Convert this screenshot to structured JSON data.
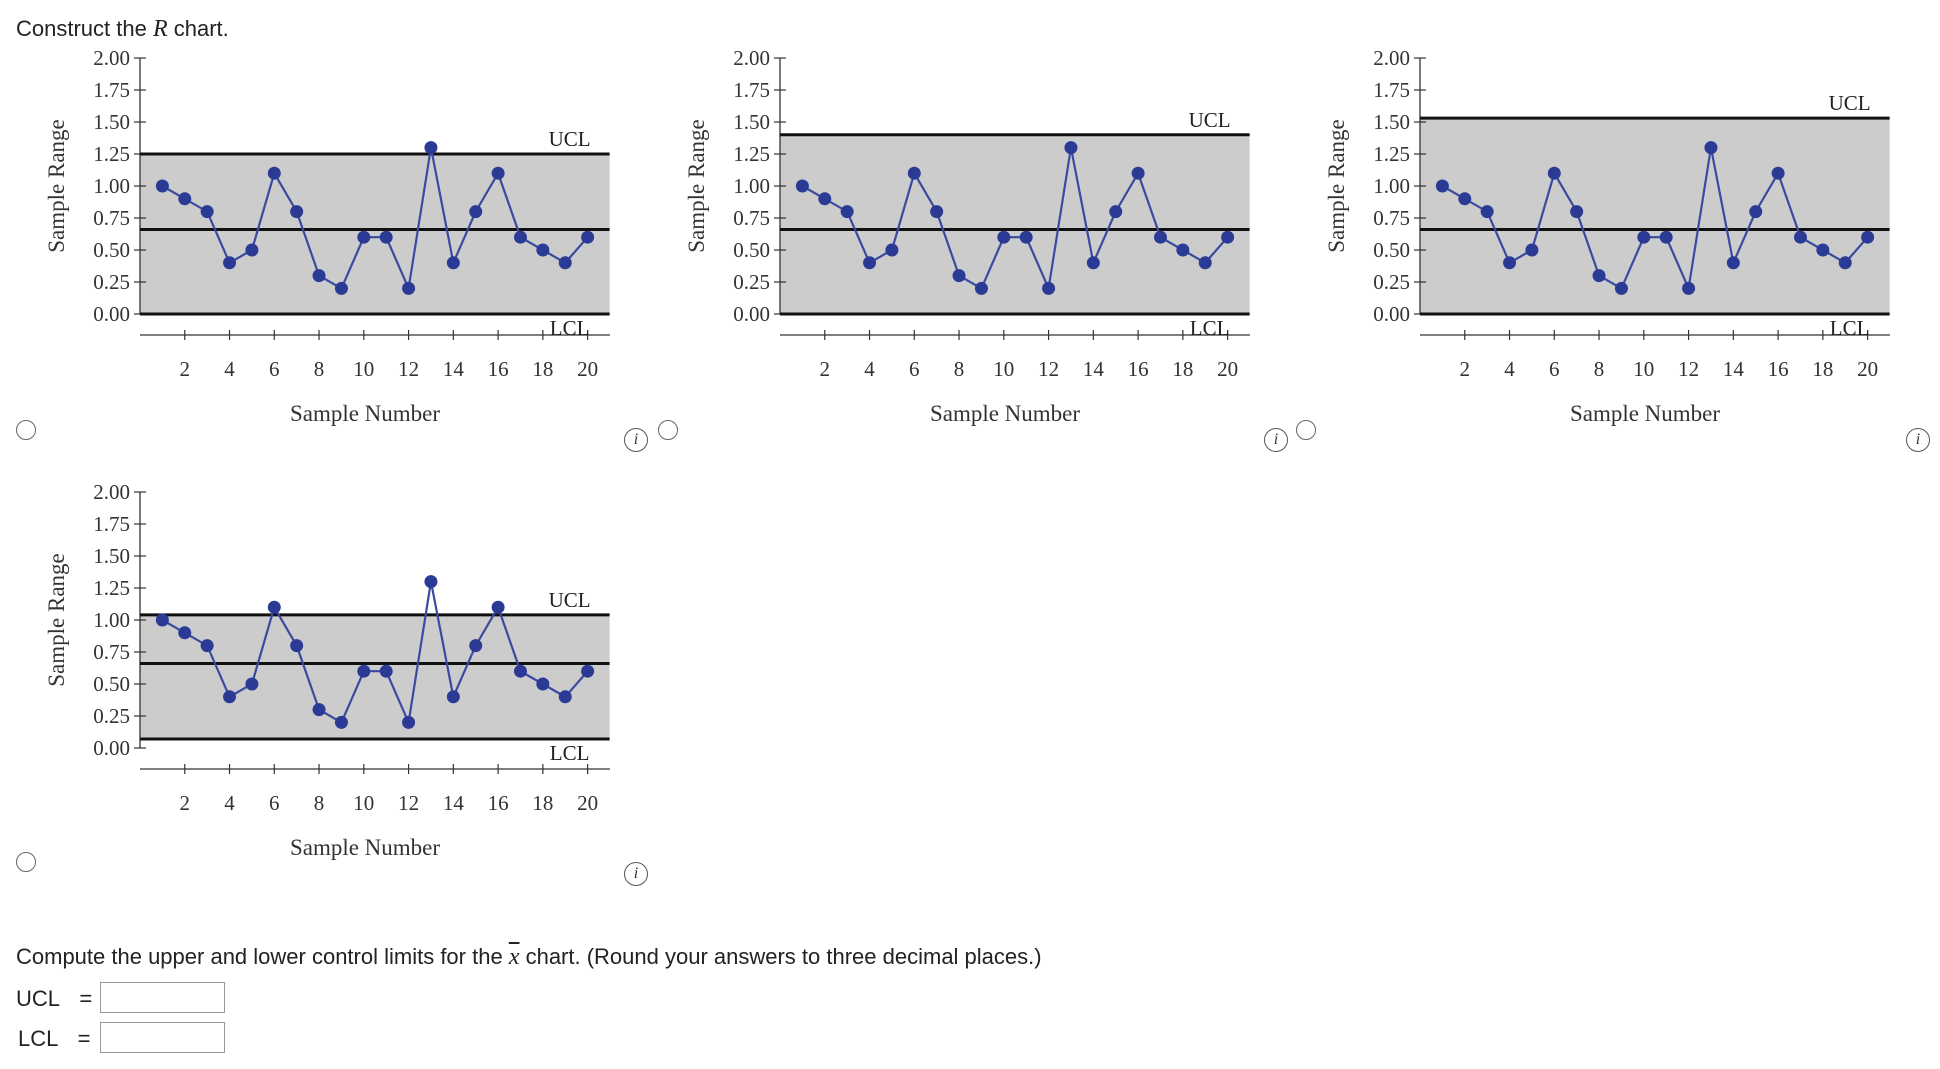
{
  "prompt": {
    "text": "Construct the ",
    "r": "R",
    "text_end": " chart."
  },
  "question2": {
    "text_start": "Compute the upper and lower control limits for the ",
    "xbar": "x",
    "text_end": " chart. (Round your answers to three decimal places.)"
  },
  "answers": {
    "ucl_label": "UCL",
    "lcl_label": "LCL",
    "equals": "=",
    "ucl_value": "",
    "lcl_value": ""
  },
  "info_glyph": "i",
  "chart_data": [
    {
      "type": "line",
      "xlabel": "Sample Number",
      "ylabel": "Sample Range",
      "ylim": [
        0,
        2.0
      ],
      "xlim": [
        0,
        21
      ],
      "yticks": [
        "0.00",
        "0.25",
        "0.50",
        "0.75",
        "1.00",
        "1.25",
        "1.50",
        "1.75",
        "2.00"
      ],
      "xticks": [
        "2",
        "4",
        "6",
        "8",
        "10",
        "12",
        "14",
        "16",
        "18",
        "20"
      ],
      "x": [
        1,
        2,
        3,
        4,
        5,
        6,
        7,
        8,
        9,
        10,
        11,
        12,
        13,
        14,
        15,
        16,
        17,
        18,
        19,
        20
      ],
      "values": [
        1.0,
        0.9,
        0.8,
        0.4,
        0.5,
        1.1,
        0.8,
        0.3,
        0.2,
        0.6,
        0.6,
        0.2,
        1.3,
        0.4,
        0.8,
        1.1,
        0.6,
        0.5,
        0.4,
        0.6
      ],
      "ucl": 1.25,
      "center": 0.66,
      "lcl": 0.0,
      "ucl_label": "UCL",
      "lcl_label": "LCL",
      "series_color": "#3a4aa0",
      "band_color": "#cccccc"
    },
    {
      "type": "line",
      "xlabel": "Sample Number",
      "ylabel": "Sample Range",
      "ylim": [
        0,
        2.0
      ],
      "xlim": [
        0,
        21
      ],
      "yticks": [
        "0.00",
        "0.25",
        "0.50",
        "0.75",
        "1.00",
        "1.25",
        "1.50",
        "1.75",
        "2.00"
      ],
      "xticks": [
        "2",
        "4",
        "6",
        "8",
        "10",
        "12",
        "14",
        "16",
        "18",
        "20"
      ],
      "x": [
        1,
        2,
        3,
        4,
        5,
        6,
        7,
        8,
        9,
        10,
        11,
        12,
        13,
        14,
        15,
        16,
        17,
        18,
        19,
        20
      ],
      "values": [
        1.0,
        0.9,
        0.8,
        0.4,
        0.5,
        1.1,
        0.8,
        0.3,
        0.2,
        0.6,
        0.6,
        0.2,
        1.3,
        0.4,
        0.8,
        1.1,
        0.6,
        0.5,
        0.4,
        0.6
      ],
      "ucl": 1.4,
      "center": 0.66,
      "lcl": 0.0,
      "ucl_label": "UCL",
      "lcl_label": "LCL",
      "series_color": "#3a4aa0",
      "band_color": "#cccccc"
    },
    {
      "type": "line",
      "xlabel": "Sample Number",
      "ylabel": "Sample Range",
      "ylim": [
        0,
        2.0
      ],
      "xlim": [
        0,
        21
      ],
      "yticks": [
        "0.00",
        "0.25",
        "0.50",
        "0.75",
        "1.00",
        "1.25",
        "1.50",
        "1.75",
        "2.00"
      ],
      "xticks": [
        "2",
        "4",
        "6",
        "8",
        "10",
        "12",
        "14",
        "16",
        "18",
        "20"
      ],
      "x": [
        1,
        2,
        3,
        4,
        5,
        6,
        7,
        8,
        9,
        10,
        11,
        12,
        13,
        14,
        15,
        16,
        17,
        18,
        19,
        20
      ],
      "values": [
        1.0,
        0.9,
        0.8,
        0.4,
        0.5,
        1.1,
        0.8,
        0.3,
        0.2,
        0.6,
        0.6,
        0.2,
        1.3,
        0.4,
        0.8,
        1.1,
        0.6,
        0.5,
        0.4,
        0.6
      ],
      "ucl": 1.53,
      "center": 0.66,
      "lcl": 0.0,
      "ucl_label": "UCL",
      "lcl_label": "LCL",
      "series_color": "#3a4aa0",
      "band_color": "#cccccc"
    },
    {
      "type": "line",
      "xlabel": "Sample Number",
      "ylabel": "Sample Range",
      "ylim": [
        0,
        2.0
      ],
      "xlim": [
        0,
        21
      ],
      "yticks": [
        "0.00",
        "0.25",
        "0.50",
        "0.75",
        "1.00",
        "1.25",
        "1.50",
        "1.75",
        "2.00"
      ],
      "xticks": [
        "2",
        "4",
        "6",
        "8",
        "10",
        "12",
        "14",
        "16",
        "18",
        "20"
      ],
      "x": [
        1,
        2,
        3,
        4,
        5,
        6,
        7,
        8,
        9,
        10,
        11,
        12,
        13,
        14,
        15,
        16,
        17,
        18,
        19,
        20
      ],
      "values": [
        1.0,
        0.9,
        0.8,
        0.4,
        0.5,
        1.1,
        0.8,
        0.3,
        0.2,
        0.6,
        0.6,
        0.2,
        1.3,
        0.4,
        0.8,
        1.1,
        0.6,
        0.5,
        0.4,
        0.6
      ],
      "ucl": 1.04,
      "center": 0.66,
      "lcl": 0.07,
      "ucl_label": "UCL",
      "lcl_label": "LCL",
      "series_color": "#3a4aa0",
      "band_color": "#cccccc"
    }
  ]
}
